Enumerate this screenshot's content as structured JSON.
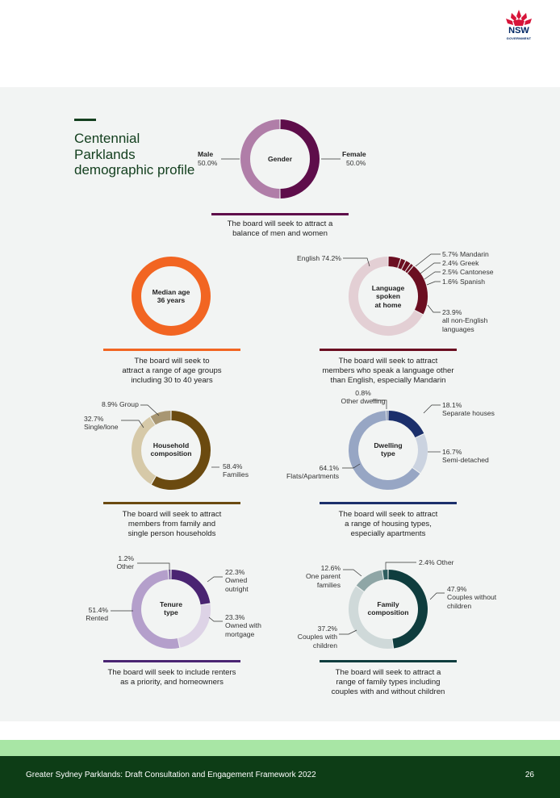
{
  "header": {
    "logo_text": "NSW",
    "logo_sub": "GOVERNMENT"
  },
  "heading": "Centennial Parklands demographic profile",
  "colors": {
    "gender_female": "#5e0d4a",
    "gender_male": "#b07ea8",
    "age": "#f26522",
    "tenure": "#4a2472",
    "dwelling": "#1b2f6b",
    "household": "#6b4a10",
    "family": "#0f3d3e",
    "language": "#6b0e21",
    "panel_bg": "#f2f4f3",
    "footer_bg": "#0d3d16",
    "footer_band": "#a8e6a5"
  },
  "gender": {
    "center": "Gender",
    "male_label": "Male",
    "male_value": "50.0%",
    "female_label": "Female",
    "female_value": "50.0%",
    "caption_l1": "The board will seek to attract a",
    "caption_l2": "balance of men and women"
  },
  "age": {
    "center_l1": "Median age",
    "center_l2": "36 years",
    "caption_l1": "The board will seek to",
    "caption_l2": "attract a range of age groups",
    "caption_l3": "including 30 to 40 years"
  },
  "language": {
    "center_l1": "Language",
    "center_l2": "spoken",
    "center_l3": "at home",
    "english": "English 74.2%",
    "mandarin": "5.7% Mandarin",
    "greek": "2.4% Greek",
    "cantonese": "2.5% Cantonese",
    "spanish": "1.6% Spanish",
    "other_l1": "23.9%",
    "other_l2": "all non-English",
    "other_l3": "languages",
    "caption_l1": "The board will seek to attract",
    "caption_l2": "members who speak a language other",
    "caption_l3": "than English, especially Mandarin"
  },
  "household": {
    "center_l1": "Household",
    "center_l2": "composition",
    "group": "8.9% Group",
    "single_l1": "32.7%",
    "single_l2": "Single/lone",
    "families_l1": "58.4%",
    "families_l2": "Families",
    "caption_l1": "The board will seek to attract",
    "caption_l2": "members from family and",
    "caption_l3": "single person households"
  },
  "dwelling": {
    "center_l1": "Dwelling",
    "center_l2": "type",
    "other_l1": "0.8%",
    "other_l2": "Other dwelling",
    "separate_l1": "18.1%",
    "separate_l2": "Separate houses",
    "semi_l1": "16.7%",
    "semi_l2": "Semi-detached",
    "flats_l1": "64.1%",
    "flats_l2": "Flats/Apartments",
    "caption_l1": "The board will seek to attract",
    "caption_l2": "a range of housing types,",
    "caption_l3": "especially apartments"
  },
  "tenure": {
    "center_l1": "Tenure",
    "center_l2": "type",
    "other_l1": "1.2%",
    "other_l2": "Other",
    "owned_l1": "22.3%",
    "owned_l2": "Owned",
    "owned_l3": "outright",
    "mortgage_l1": "23.3%",
    "mortgage_l2": "Owned with",
    "mortgage_l3": "mortgage",
    "rented_l1": "51.4%",
    "rented_l2": "Rented",
    "caption_l1": "The board will seek to include renters",
    "caption_l2": "as a priority, and homeowners"
  },
  "family": {
    "center_l1": "Family",
    "center_l2": "composition",
    "other": "2.4% Other",
    "oneparent_l1": "12.6%",
    "oneparent_l2": "One parent",
    "oneparent_l3": "families",
    "without_l1": "47.9%",
    "without_l2": "Couples without",
    "without_l3": "children",
    "with_l1": "37.2%",
    "with_l2": "Couples with",
    "with_l3": "children",
    "caption_l1": "The board will seek to attract a",
    "caption_l2": "range of family types including",
    "caption_l3": "couples with and without children"
  },
  "chart_data": [
    {
      "type": "pie",
      "id": "gender",
      "title": "Gender",
      "slices": [
        {
          "label": "Female",
          "value": 50.0,
          "color": "#5e0d4a"
        },
        {
          "label": "Male",
          "value": 50.0,
          "color": "#b07ea8"
        }
      ]
    },
    {
      "type": "pie",
      "id": "age",
      "title": "Median age 36 years",
      "slices": [
        {
          "label": "",
          "value": 100,
          "color": "#f26522"
        }
      ]
    },
    {
      "type": "pie",
      "id": "language",
      "title": "Language spoken at home",
      "slices": [
        {
          "label": "Mandarin",
          "value": 5.7,
          "color": "#6b0e21"
        },
        {
          "label": "Greek",
          "value": 2.4,
          "color": "#6b0e21"
        },
        {
          "label": "Cantonese",
          "value": 2.5,
          "color": "#6b0e21"
        },
        {
          "label": "Spanish",
          "value": 1.6,
          "color": "#6b0e21"
        },
        {
          "label": "all non-English languages",
          "value": 23.9,
          "color": "#6b0e21"
        },
        {
          "label": "English",
          "value": 74.2,
          "color": "#e3cfd4"
        }
      ]
    },
    {
      "type": "pie",
      "id": "household",
      "title": "Household composition",
      "slices": [
        {
          "label": "Families",
          "value": 58.4,
          "color": "#6b4a10"
        },
        {
          "label": "Single/lone",
          "value": 32.7,
          "color": "#d6c9a8"
        },
        {
          "label": "Group",
          "value": 8.9,
          "color": "#a89672"
        }
      ]
    },
    {
      "type": "pie",
      "id": "dwelling",
      "title": "Dwelling type",
      "slices": [
        {
          "label": "Separate houses",
          "value": 18.1,
          "color": "#1b2f6b"
        },
        {
          "label": "Semi-detached",
          "value": 16.7,
          "color": "#cbd3e0"
        },
        {
          "label": "Flats/Apartments",
          "value": 64.1,
          "color": "#97a6c4"
        },
        {
          "label": "Other dwelling",
          "value": 0.8,
          "color": "#5c6f99"
        }
      ]
    },
    {
      "type": "pie",
      "id": "tenure",
      "title": "Tenure type",
      "slices": [
        {
          "label": "Owned outright",
          "value": 22.3,
          "color": "#4a2472"
        },
        {
          "label": "Owned with mortgage",
          "value": 23.3,
          "color": "#ddd3e6"
        },
        {
          "label": "Rented",
          "value": 51.4,
          "color": "#b49fcb"
        },
        {
          "label": "Other",
          "value": 1.2,
          "color": "#7d62a0"
        }
      ]
    },
    {
      "type": "pie",
      "id": "family",
      "title": "Family composition",
      "slices": [
        {
          "label": "Couples without children",
          "value": 47.9,
          "color": "#0f3d3e"
        },
        {
          "label": "Couples with children",
          "value": 37.2,
          "color": "#cfd9d9"
        },
        {
          "label": "One parent families",
          "value": 12.6,
          "color": "#8fa6a6"
        },
        {
          "label": "Other",
          "value": 2.4,
          "color": "#2f5e5f"
        }
      ]
    }
  ],
  "footer": {
    "title": "Greater Sydney Parklands: Draft Consultation and Engagement Framework 2022",
    "page": "26"
  }
}
